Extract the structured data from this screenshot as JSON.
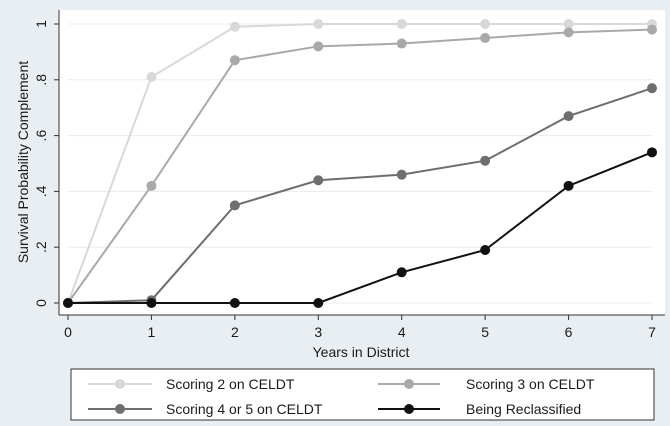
{
  "chart_data": {
    "type": "line",
    "xlabel": "Years in District",
    "ylabel": "Survival Probability Complement",
    "x": [
      0,
      1,
      2,
      3,
      4,
      5,
      6,
      7
    ],
    "x_ticks": [
      "0",
      "1",
      "2",
      "3",
      "4",
      "5",
      "6",
      "7"
    ],
    "y_ticks": [
      {
        "value": 0,
        "label": "0"
      },
      {
        "value": 0.2,
        "label": ".2"
      },
      {
        "value": 0.4,
        "label": ".4"
      },
      {
        "value": 0.6,
        "label": ".6"
      },
      {
        "value": 0.8,
        "label": ".8"
      },
      {
        "value": 1,
        "label": "1"
      }
    ],
    "xlim": [
      0,
      7
    ],
    "ylim": [
      0,
      1
    ],
    "grid": "horizontal",
    "legend_position": "bottom",
    "series": [
      {
        "name": "Scoring 2 on CELDT",
        "color": "#d8d8d8",
        "values": [
          0,
          0.81,
          0.99,
          1.0,
          1.0,
          1.0,
          1.0,
          1.0
        ]
      },
      {
        "name": "Scoring 3 on CELDT",
        "color": "#a9a9a9",
        "values": [
          0,
          0.42,
          0.87,
          0.92,
          0.93,
          0.95,
          0.97,
          0.98
        ]
      },
      {
        "name": "Scoring 4 or 5 on CELDT",
        "color": "#6e6e6e",
        "values": [
          0,
          0.01,
          0.35,
          0.44,
          0.46,
          0.51,
          0.67,
          0.77
        ]
      },
      {
        "name": "Being Reclassified",
        "color": "#111111",
        "values": [
          0,
          0,
          0,
          0,
          0.11,
          0.19,
          0.42,
          0.54
        ]
      }
    ]
  }
}
